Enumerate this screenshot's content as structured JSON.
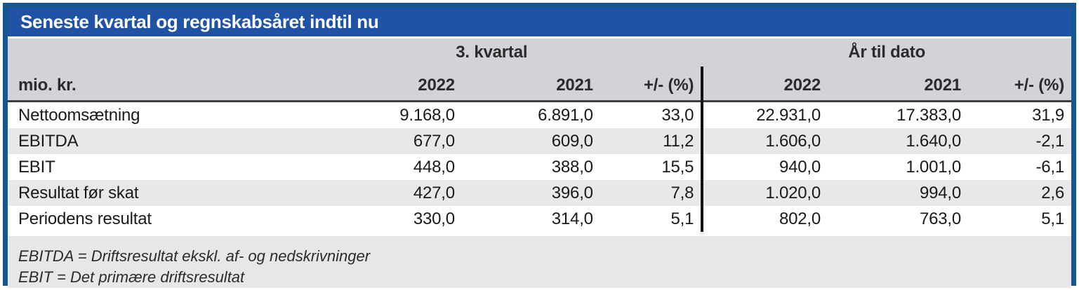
{
  "title": "Seneste kvartal og regnskabsåret indtil nu",
  "table": {
    "unit_label": "mio. kr.",
    "group_headers": [
      {
        "label": "3. kvartal"
      },
      {
        "label": "År til dato"
      }
    ],
    "column_headers": [
      "2022",
      "2021",
      "+/- (%)",
      "2022",
      "2021",
      "+/- (%)"
    ],
    "rows": [
      {
        "label": "Nettoomsætning",
        "values": [
          "9.168,0",
          "6.891,0",
          "33,0",
          "22.931,0",
          "17.383,0",
          "31,9"
        ]
      },
      {
        "label": "EBITDA",
        "values": [
          "677,0",
          "609,0",
          "11,2",
          "1.606,0",
          "1.640,0",
          "-2,1"
        ]
      },
      {
        "label": "EBIT",
        "values": [
          "448,0",
          "388,0",
          "15,5",
          "940,0",
          "1.001,0",
          "-6,1"
        ]
      },
      {
        "label": "Resultat før skat",
        "values": [
          "427,0",
          "396,0",
          "7,8",
          "1.020,0",
          "994,0",
          "2,6"
        ]
      },
      {
        "label": "Periodens resultat",
        "values": [
          "330,0",
          "314,0",
          "5,1",
          "802,0",
          "763,0",
          "5,1"
        ]
      }
    ],
    "footnotes": [
      "EBITDA = Driftsresultat ekskl. af- og nedskrivninger",
      "EBIT = Det primære driftsresultat"
    ]
  },
  "colors": {
    "title_bar_blue": "#2153a5",
    "border_blue": "#15578f",
    "header_gray": "#d2d3d9",
    "row_alt_gray": "#e8e8ea",
    "footer_gray": "#e7e7e9",
    "divider_black": "#141414",
    "header_rule_dark": "#3f3f3f",
    "text_dark": "#1a1a1a"
  },
  "chart_data": {
    "type": "table",
    "title": "Seneste kvartal og regnskabsåret indtil nu",
    "unit": "mio. kr.",
    "column_groups": [
      "3. kvartal",
      "År til dato"
    ],
    "columns": [
      "Q3 2022",
      "Q3 2021",
      "Q3 +/- (%)",
      "YTD 2022",
      "YTD 2021",
      "YTD +/- (%)"
    ],
    "rows": [
      {
        "label": "Nettoomsætning",
        "q3_2022": 9168.0,
        "q3_2021": 6891.0,
        "q3_pct": 33.0,
        "ytd_2022": 22931.0,
        "ytd_2021": 17383.0,
        "ytd_pct": 31.9
      },
      {
        "label": "EBITDA",
        "q3_2022": 677.0,
        "q3_2021": 609.0,
        "q3_pct": 11.2,
        "ytd_2022": 1606.0,
        "ytd_2021": 1640.0,
        "ytd_pct": -2.1
      },
      {
        "label": "EBIT",
        "q3_2022": 448.0,
        "q3_2021": 388.0,
        "q3_pct": 15.5,
        "ytd_2022": 940.0,
        "ytd_2021": 1001.0,
        "ytd_pct": -6.1
      },
      {
        "label": "Resultat før skat",
        "q3_2022": 427.0,
        "q3_2021": 396.0,
        "q3_pct": 7.8,
        "ytd_2022": 1020.0,
        "ytd_2021": 994.0,
        "ytd_pct": 2.6
      },
      {
        "label": "Periodens resultat",
        "q3_2022": 330.0,
        "q3_2021": 314.0,
        "q3_pct": 5.1,
        "ytd_2022": 802.0,
        "ytd_2021": 763.0,
        "ytd_pct": 5.1
      }
    ],
    "footnotes": [
      "EBITDA = Driftsresultat ekskl. af- og nedskrivninger",
      "EBIT = Det primære driftsresultat"
    ]
  }
}
